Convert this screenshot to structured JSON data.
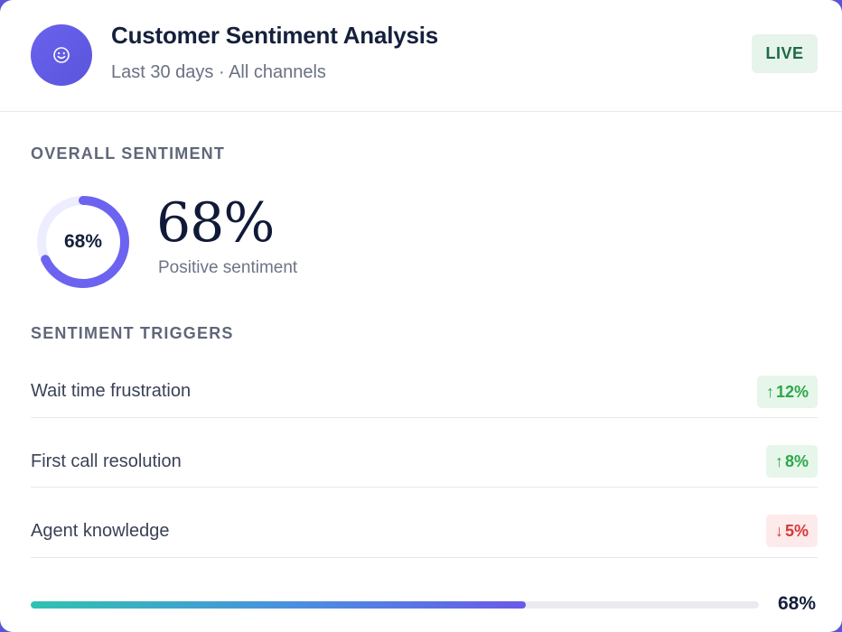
{
  "header": {
    "title": "Customer Sentiment Analysis",
    "subtitle": "Last 30 days · All channels",
    "status_badge": "LIVE",
    "avatar_icon": "smiley-face-icon",
    "accent_color": "#5a55dc"
  },
  "overall": {
    "section_label": "OVERALL SENTIMENT",
    "donut_label": "68%",
    "donut_value": 0.68,
    "big_value": "68%",
    "caption": "Positive sentiment"
  },
  "triggers": {
    "section_label": "SENTIMENT TRIGGERS",
    "items": [
      {
        "label": "Wait time frustration",
        "trend": "up",
        "arrow": "↑",
        "value": "12%"
      },
      {
        "label": "First call resolution",
        "trend": "up",
        "arrow": "↑",
        "value": "8%"
      },
      {
        "label": "Agent knowledge",
        "trend": "down",
        "arrow": "↓",
        "value": "5%"
      }
    ]
  },
  "progress": {
    "value": 0.68,
    "label": "68%"
  }
}
